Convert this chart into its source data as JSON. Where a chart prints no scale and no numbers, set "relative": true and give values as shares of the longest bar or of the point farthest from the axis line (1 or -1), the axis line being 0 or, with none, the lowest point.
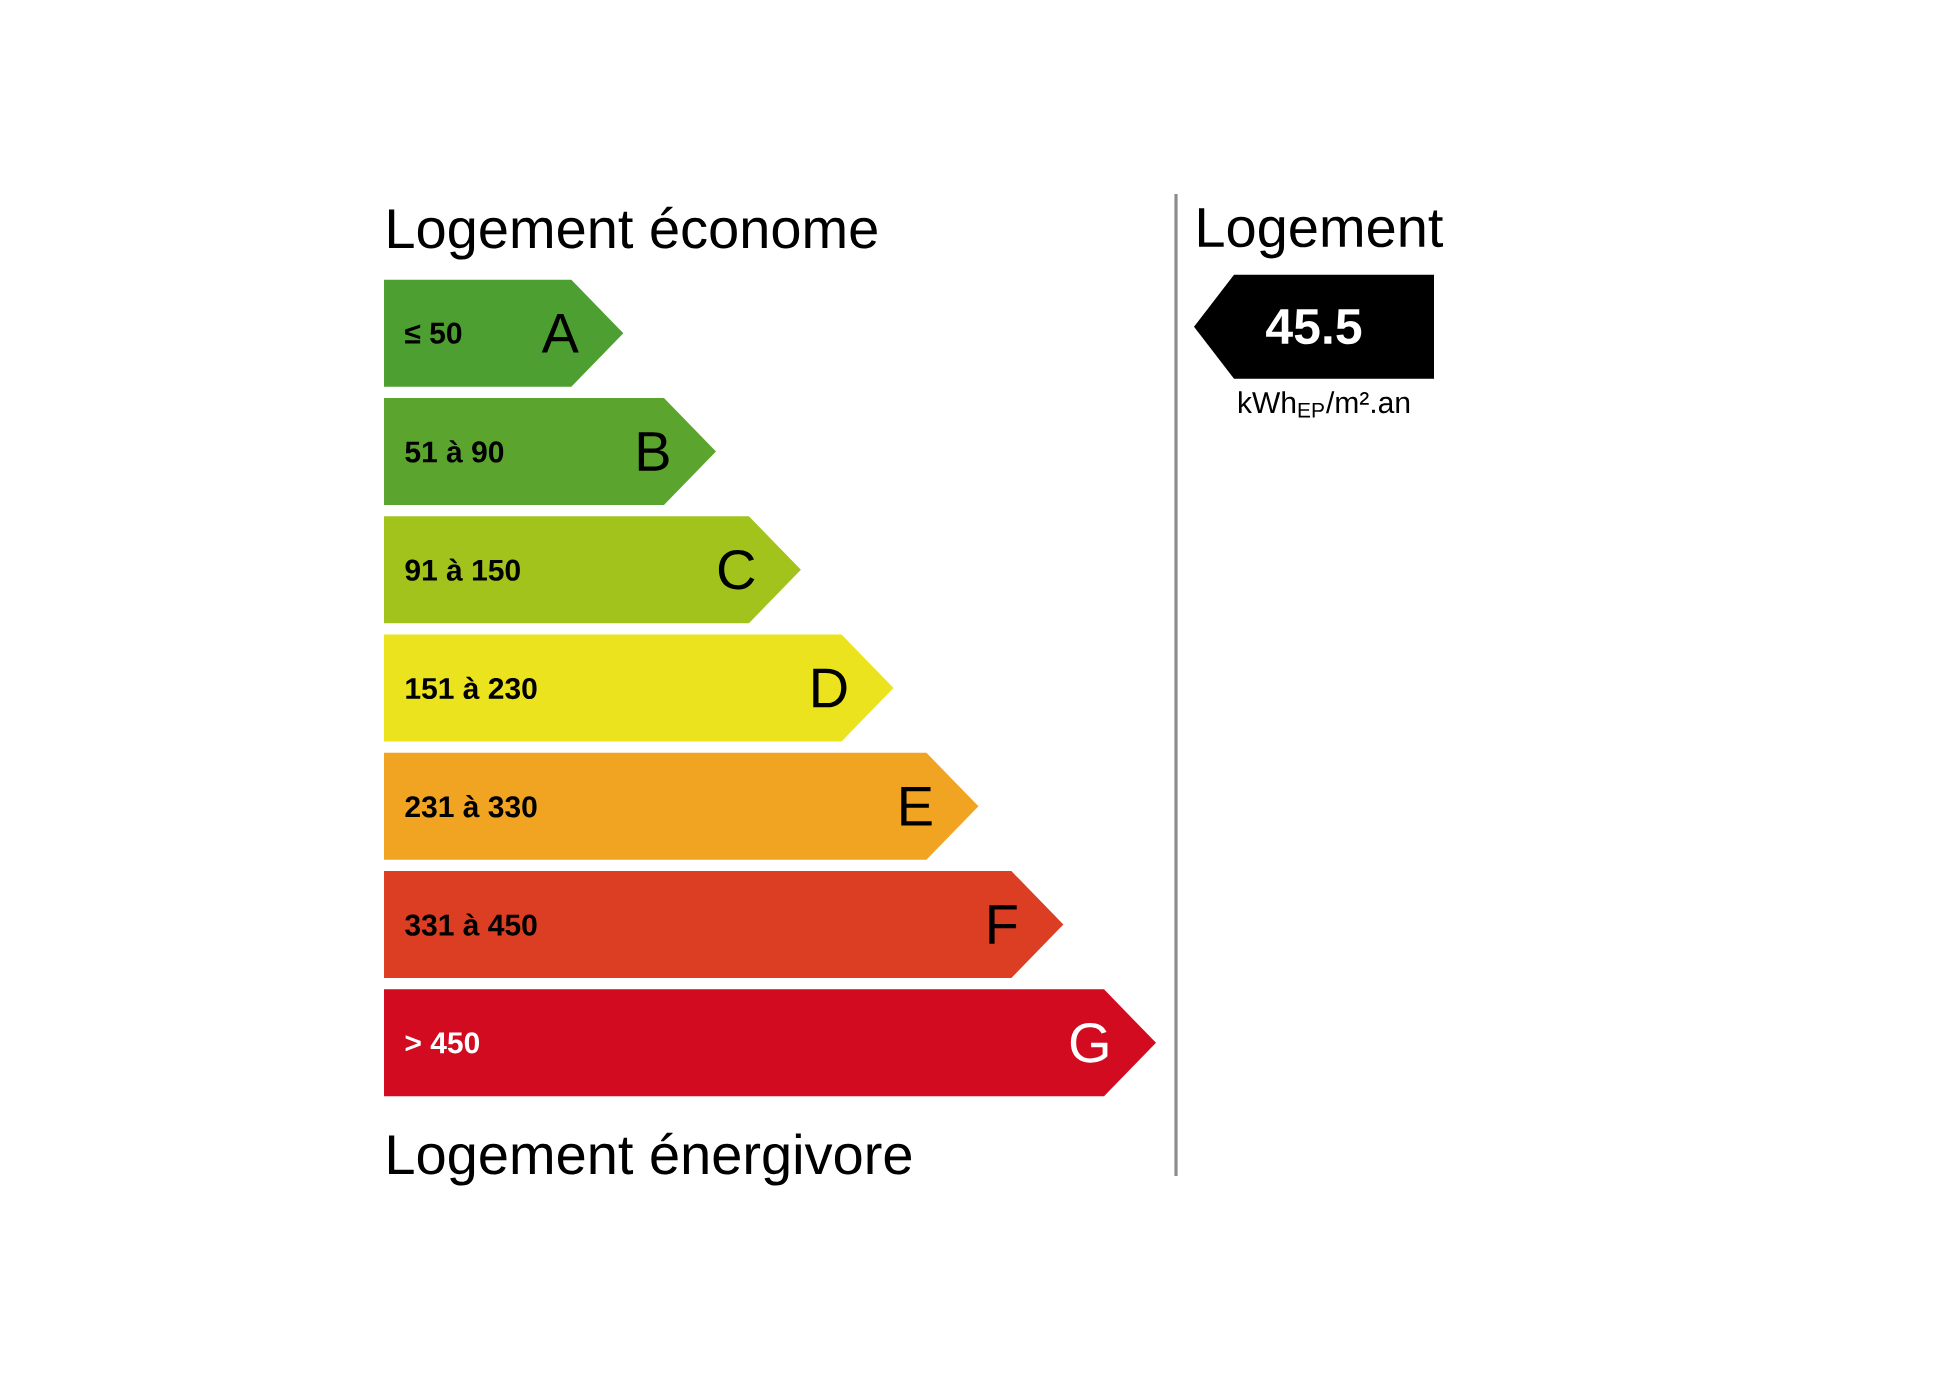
{
  "chart_data": {
    "type": "bar",
    "orientation": "horizontal",
    "relative": true,
    "title": "Logement économe",
    "xlabel": "Logement énergivore",
    "categories": [
      "A",
      "B",
      "C",
      "D",
      "E",
      "F",
      "G"
    ],
    "values": [
      0.31,
      0.43,
      0.54,
      0.66,
      0.77,
      0.88,
      1
    ],
    "colors": [
      "#4e9f31",
      "#5ba52f",
      "#a2c31b",
      "#ebe31d",
      "#f0a421",
      "#db3e22",
      "#d20b20"
    ],
    "annotations": [
      "≤ 50",
      "51 à 90",
      "91 à 150",
      "151 à 230",
      "231 à 330",
      "331 à 450",
      "> 450",
      "Logement",
      "45.5",
      "kWh$_{EP}$/m².an"
    ]
  }
}
